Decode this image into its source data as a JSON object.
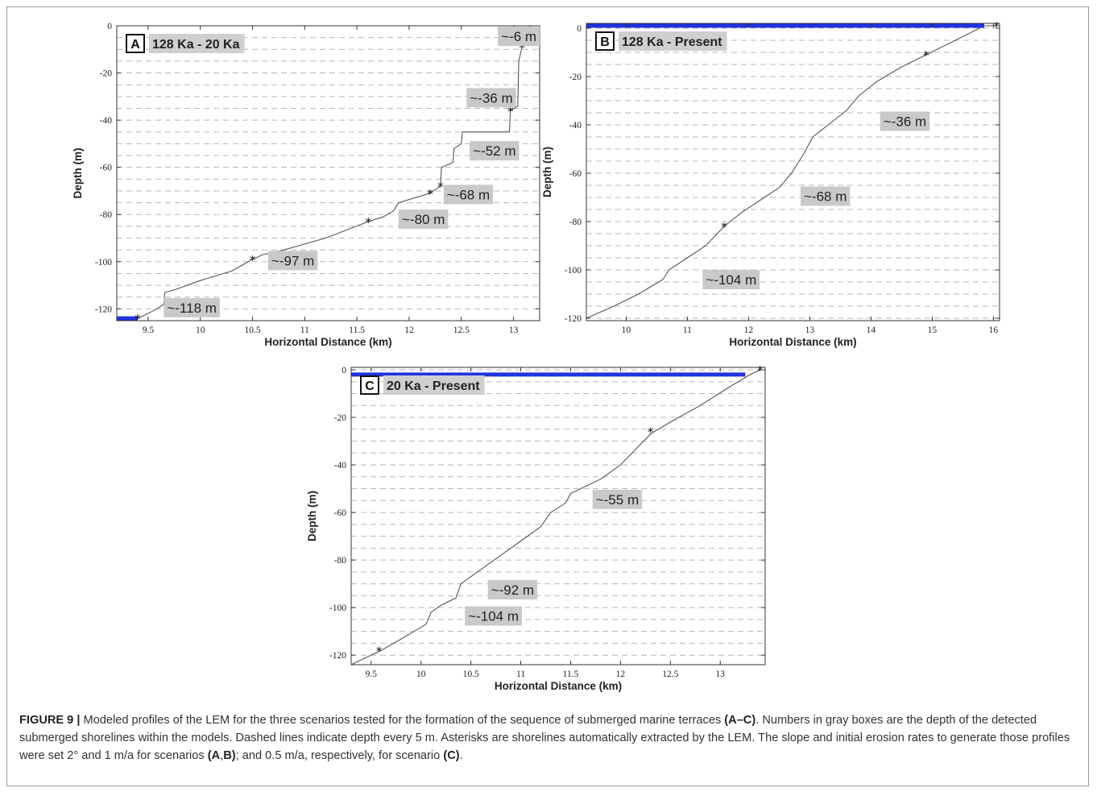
{
  "chart_data": [
    {
      "panel": "A",
      "title": "128 Ka -  20 Ka",
      "type": "line",
      "xlabel": "Horizontal Distance (km)",
      "ylabel": "Depth (m)",
      "xlim": [
        9.2,
        13.25
      ],
      "ylim": [
        -125,
        0
      ],
      "xticks": [
        9.5,
        10,
        10.5,
        11,
        11.5,
        12,
        12.5,
        13
      ],
      "yticks": [
        0,
        -20,
        -40,
        -60,
        -80,
        -100,
        -120
      ],
      "dashed_grid_every": 5,
      "sea_level": {
        "y": -124,
        "x": [
          9.2,
          9.4
        ],
        "color": "#1f33e0"
      },
      "profile": [
        [
          9.2,
          -125
        ],
        [
          9.4,
          -124
        ],
        [
          9.52,
          -121.5
        ],
        [
          9.62,
          -119
        ],
        [
          9.65,
          -118
        ],
        [
          9.66,
          -113
        ],
        [
          9.75,
          -112
        ],
        [
          10.0,
          -108
        ],
        [
          10.3,
          -104
        ],
        [
          10.5,
          -99
        ],
        [
          10.6,
          -97
        ],
        [
          10.8,
          -95
        ],
        [
          11.2,
          -90
        ],
        [
          11.61,
          -83
        ],
        [
          11.75,
          -81
        ],
        [
          11.85,
          -78.5
        ],
        [
          11.9,
          -75
        ],
        [
          12.05,
          -73
        ],
        [
          12.2,
          -71
        ],
        [
          12.3,
          -68
        ],
        [
          12.31,
          -60
        ],
        [
          12.42,
          -58
        ],
        [
          12.43,
          -52
        ],
        [
          12.5,
          -50
        ],
        [
          12.51,
          -45
        ],
        [
          12.96,
          -45
        ],
        [
          12.97,
          -36
        ],
        [
          13.04,
          -34
        ],
        [
          13.05,
          -15
        ],
        [
          13.08,
          -9
        ],
        [
          13.15,
          -6
        ],
        [
          13.16,
          0
        ]
      ],
      "shorelines": [
        [
          9.4,
          -124
        ],
        [
          10.5,
          -99
        ],
        [
          11.61,
          -83
        ],
        [
          12.2,
          -71
        ],
        [
          12.3,
          -68
        ],
        [
          12.97,
          -36
        ],
        [
          13.08,
          -9
        ]
      ],
      "labels": [
        {
          "text": "~-6 m",
          "x": 12.85,
          "y": -4.5
        },
        {
          "text": "~-36 m",
          "x": 12.55,
          "y": -30.5
        },
        {
          "text": "~-52 m",
          "x": 12.58,
          "y": -53
        },
        {
          "text": "~-68 m",
          "x": 12.33,
          "y": -71.5
        },
        {
          "text": "~-80 m",
          "x": 11.9,
          "y": -82
        },
        {
          "text": "~-97 m",
          "x": 10.65,
          "y": -99.5
        },
        {
          "text": "~-118 m",
          "x": 9.65,
          "y": -119.5
        }
      ]
    },
    {
      "panel": "B",
      "title": "128 Ka - Present",
      "type": "line",
      "xlabel": "Horizontal Distance (km)",
      "ylabel": "Depth (m)",
      "xlim": [
        9.35,
        16.1
      ],
      "ylim": [
        -121,
        2
      ],
      "xticks": [
        10,
        11,
        12,
        13,
        14,
        15,
        16
      ],
      "yticks": [
        0,
        -20,
        -40,
        -60,
        -80,
        -100,
        -120
      ],
      "dashed_grid_every": 5,
      "sea_level": {
        "y": 1,
        "x": [
          9.35,
          15.85
        ],
        "color": "#1f33e0"
      },
      "profile": [
        [
          9.35,
          -120
        ],
        [
          9.8,
          -115
        ],
        [
          10.2,
          -110
        ],
        [
          10.6,
          -104
        ],
        [
          10.7,
          -100
        ],
        [
          11.0,
          -95
        ],
        [
          11.3,
          -90
        ],
        [
          11.6,
          -82
        ],
        [
          11.9,
          -76
        ],
        [
          12.2,
          -71
        ],
        [
          12.5,
          -66
        ],
        [
          12.7,
          -60
        ],
        [
          12.9,
          -52
        ],
        [
          13.05,
          -45
        ],
        [
          13.3,
          -40
        ],
        [
          13.6,
          -34
        ],
        [
          13.8,
          -28
        ],
        [
          14.1,
          -22
        ],
        [
          14.5,
          -16
        ],
        [
          14.9,
          -11
        ],
        [
          15.3,
          -6
        ],
        [
          15.85,
          1
        ],
        [
          16.05,
          1
        ]
      ],
      "shorelines": [
        [
          11.6,
          -82
        ],
        [
          14.9,
          -11
        ],
        [
          16.05,
          1
        ]
      ],
      "labels": [
        {
          "text": "~-36 m",
          "x": 14.15,
          "y": -38.5
        },
        {
          "text": "~-68 m",
          "x": 12.85,
          "y": -69.5
        },
        {
          "text": "~-104 m",
          "x": 11.25,
          "y": -104
        }
      ]
    },
    {
      "panel": "C",
      "title": "20 Ka - Present",
      "type": "line",
      "xlabel": "Horizontal Distance (km)",
      "ylabel": "Depth (m)",
      "xlim": [
        9.3,
        13.45
      ],
      "ylim": [
        -124,
        1
      ],
      "xticks": [
        9.5,
        10,
        10.5,
        11,
        11.5,
        12,
        12.5,
        13
      ],
      "yticks": [
        0,
        -20,
        -40,
        -60,
        -80,
        -100,
        -120
      ],
      "dashed_grid_every": 5,
      "sea_level": {
        "y": -2,
        "x": [
          9.3,
          13.25
        ],
        "color": "#1f33e0"
      },
      "profile": [
        [
          9.3,
          -124
        ],
        [
          9.6,
          -118
        ],
        [
          9.85,
          -112
        ],
        [
          10.05,
          -107
        ],
        [
          10.1,
          -102
        ],
        [
          10.2,
          -99
        ],
        [
          10.35,
          -96
        ],
        [
          10.4,
          -90
        ],
        [
          10.6,
          -84
        ],
        [
          10.8,
          -78
        ],
        [
          11.0,
          -72
        ],
        [
          11.2,
          -66
        ],
        [
          11.3,
          -60
        ],
        [
          11.45,
          -56
        ],
        [
          11.5,
          -52
        ],
        [
          11.8,
          -46
        ],
        [
          12.0,
          -40
        ],
        [
          12.3,
          -27
        ],
        [
          12.5,
          -22
        ],
        [
          12.8,
          -15
        ],
        [
          13.1,
          -7
        ],
        [
          13.3,
          -2
        ],
        [
          13.4,
          0
        ]
      ],
      "shorelines": [
        [
          9.58,
          -118
        ],
        [
          12.3,
          -26
        ],
        [
          13.4,
          0
        ]
      ],
      "labels": [
        {
          "text": "~-55 m",
          "x": 11.72,
          "y": -54.5
        },
        {
          "text": "~-92 m",
          "x": 10.67,
          "y": -92.5
        },
        {
          "text": "~-104 m",
          "x": 10.44,
          "y": -103.5
        }
      ]
    }
  ],
  "caption": {
    "lead": "FIGURE 9 |",
    "t1": " Modeled profiles of the LEM for the three scenarios tested for the formation of the sequence of submerged marine terraces ",
    "b1": "(A–C)",
    "t2": ". Numbers in gray boxes are the depth of the detected submerged shorelines within the models. Dashed lines indicate depth every 5 m. Asterisks are shorelines automatically extracted by the LEM. The slope and initial erosion rates to generate those profiles were set 2° and 1 m/a for scenarios ",
    "b2": "(A",
    "t3": ",",
    "b3": "B)",
    "t4": "; and 0.5 m/a, respectively, for scenario ",
    "b4": "(C)",
    "t5": "."
  }
}
